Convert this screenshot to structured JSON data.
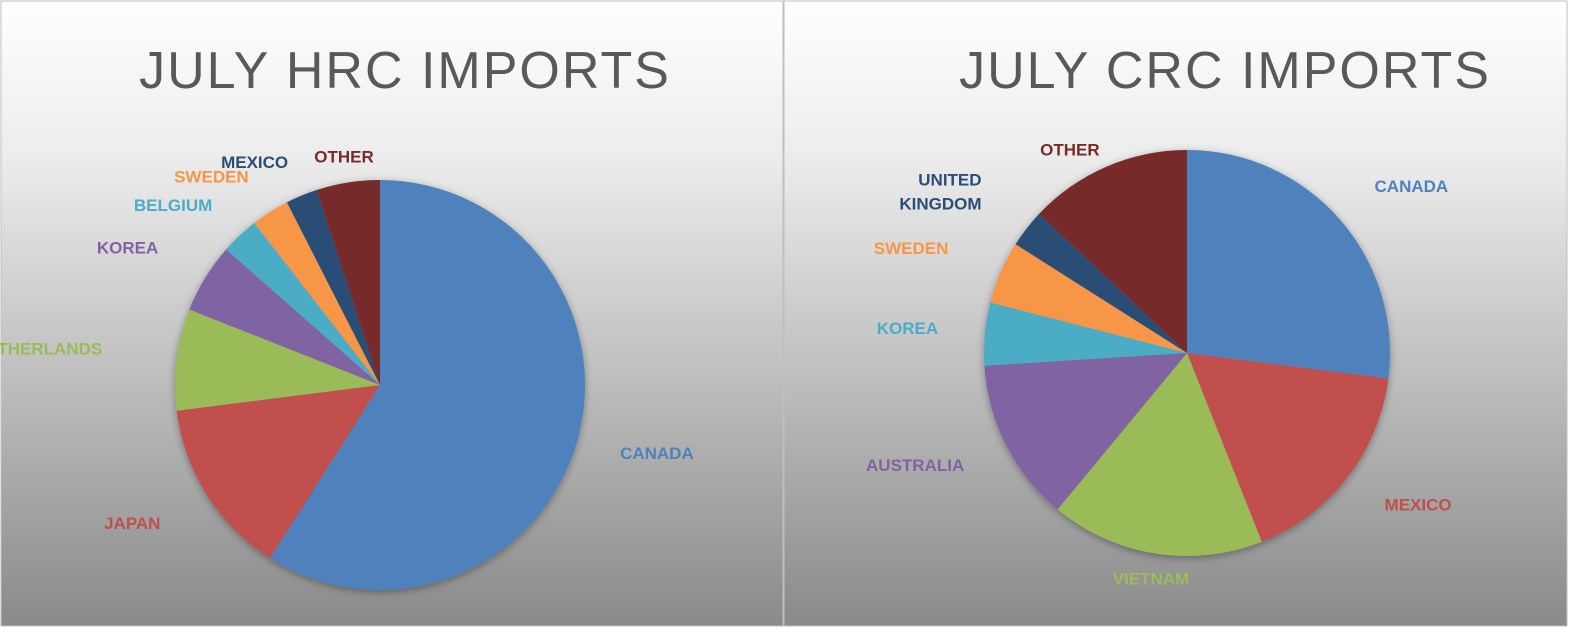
{
  "chart_data": [
    {
      "type": "pie",
      "title": "JULY HRC IMPORTS",
      "categories": [
        "CANADA",
        "JAPAN",
        "NETHERLANDS",
        "KOREA",
        "BELGIUM",
        "SWEDEN",
        "MEXICO",
        "OTHER"
      ],
      "values": [
        59,
        14,
        8,
        5.5,
        3,
        3,
        2.5,
        5
      ],
      "colors": [
        "#4f81bd",
        "#c0504d",
        "#9bbb59",
        "#8064a2",
        "#4bacc6",
        "#f79646",
        "#2c4d75",
        "#772c2a"
      ]
    },
    {
      "type": "pie",
      "title": "JULY CRC IMPORTS",
      "categories": [
        "CANADA",
        "MEXICO",
        "VIETNAM",
        "AUSTRALIA",
        "KOREA",
        "SWEDEN",
        "UNITED KINGDOM",
        "OTHER"
      ],
      "values": [
        27,
        17,
        17,
        13,
        5,
        5,
        3,
        13
      ],
      "colors": [
        "#4f81bd",
        "#c0504d",
        "#9bbb59",
        "#8064a2",
        "#4bacc6",
        "#f79646",
        "#2c4d75",
        "#772c2a"
      ]
    }
  ]
}
